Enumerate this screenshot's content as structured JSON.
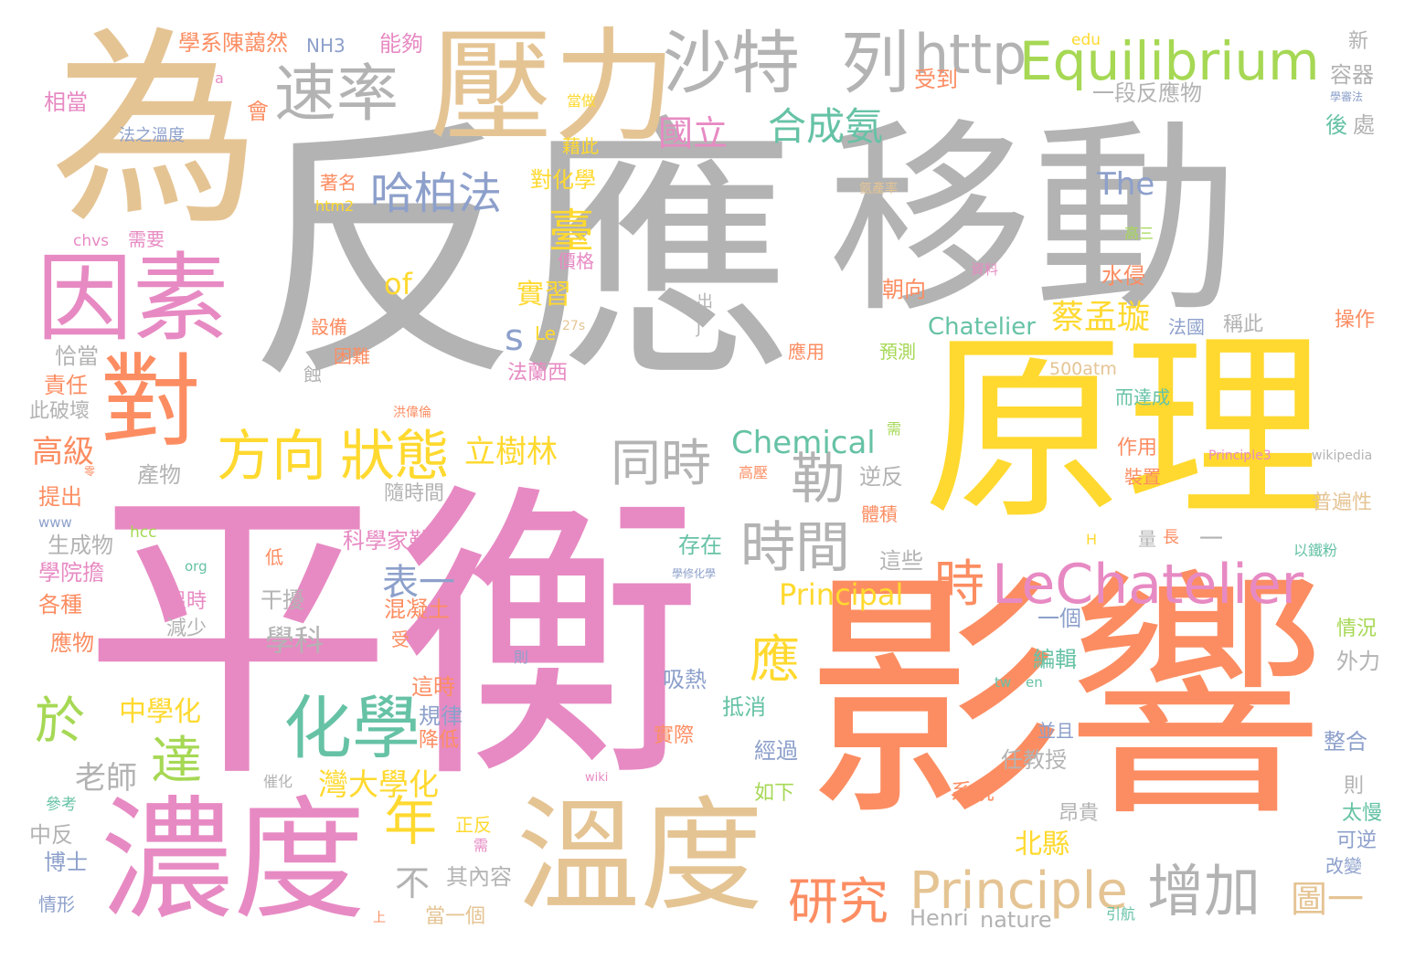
{
  "palette": {
    "gray": "#b3b3b3",
    "pink": "#e78ac3",
    "orange": "#fc8d62",
    "yellow": "#ffd92f",
    "tan": "#e5c494",
    "green": "#a6d854",
    "blue": "#8da0cb",
    "teal": "#66c2a5"
  },
  "words": [
    {
      "text": "反應",
      "color": "gray"
    },
    {
      "text": "平衡",
      "color": "pink"
    },
    {
      "text": "移動",
      "color": "gray"
    },
    {
      "text": "原理",
      "color": "yellow"
    },
    {
      "text": "影響",
      "color": "orange"
    },
    {
      "text": "為",
      "color": "tan"
    },
    {
      "text": "壓力",
      "color": "tan"
    },
    {
      "text": "濃度",
      "color": "pink"
    },
    {
      "text": "溫度",
      "color": "tan"
    },
    {
      "text": "因素",
      "color": "pink"
    },
    {
      "text": "對",
      "color": "orange"
    },
    {
      "text": "沙特",
      "color": "gray"
    },
    {
      "text": "列",
      "color": "gray"
    },
    {
      "text": "速率",
      "color": "gray"
    },
    {
      "text": "http",
      "color": "gray"
    },
    {
      "text": "Equilibrium",
      "color": "green"
    },
    {
      "text": "LeChatelier",
      "color": "pink"
    },
    {
      "text": "Principle",
      "color": "tan"
    },
    {
      "text": "方向",
      "color": "yellow"
    },
    {
      "text": "狀態",
      "color": "yellow"
    },
    {
      "text": "化學",
      "color": "teal"
    },
    {
      "text": "時間",
      "color": "gray"
    },
    {
      "text": "增加",
      "color": "gray"
    },
    {
      "text": "哈柏法",
      "color": "blue"
    },
    {
      "text": "合成氨",
      "color": "teal"
    },
    {
      "text": "同時",
      "color": "gray"
    },
    {
      "text": "勒",
      "color": "gray"
    },
    {
      "text": "研究",
      "color": "orange"
    },
    {
      "text": "時",
      "color": "orange"
    },
    {
      "text": "臺",
      "color": "yellow"
    },
    {
      "text": "應",
      "color": "yellow"
    },
    {
      "text": "於",
      "color": "green"
    },
    {
      "text": "年",
      "color": "yellow"
    },
    {
      "text": "達",
      "color": "green"
    },
    {
      "text": "The",
      "color": "blue"
    },
    {
      "text": "Chemical",
      "color": "teal"
    },
    {
      "text": "Chatelier",
      "color": "teal"
    },
    {
      "text": "Principal",
      "color": "yellow"
    },
    {
      "text": "蔡孟璇",
      "color": "yellow"
    },
    {
      "text": "立樹林",
      "color": "yellow"
    },
    {
      "text": "表一",
      "color": "blue"
    },
    {
      "text": "國立",
      "color": "pink"
    },
    {
      "text": "實習",
      "color": "yellow"
    },
    {
      "text": "高級",
      "color": "orange"
    },
    {
      "text": "灣大學化",
      "color": "yellow"
    },
    {
      "text": "中學化",
      "color": "yellow"
    },
    {
      "text": "老師",
      "color": "gray"
    },
    {
      "text": "不",
      "color": "gray"
    },
    {
      "text": "圖一",
      "color": "tan"
    },
    {
      "text": "北縣",
      "color": "yellow"
    },
    {
      "text": "s",
      "color": "blue"
    },
    {
      "text": "of",
      "color": "yellow"
    },
    {
      "text": "學科",
      "color": "gray"
    },
    {
      "text": "500atm",
      "color": "tan"
    },
    {
      "text": "Henri",
      "color": "gray"
    },
    {
      "text": "nature",
      "color": "gray"
    },
    {
      "text": "一段反應物",
      "color": "gray"
    },
    {
      "text": "edu",
      "color": "yellow"
    },
    {
      "text": "新",
      "color": "gray"
    },
    {
      "text": "容器",
      "color": "gray"
    },
    {
      "text": "後",
      "color": "teal"
    },
    {
      "text": "處",
      "color": "gray"
    },
    {
      "text": "學系陳藹然",
      "color": "orange"
    },
    {
      "text": "NH3",
      "color": "blue"
    },
    {
      "text": "能夠",
      "color": "pink"
    },
    {
      "text": "受到",
      "color": "orange"
    },
    {
      "text": "相當",
      "color": "pink"
    },
    {
      "text": "會",
      "color": "orange"
    },
    {
      "text": "法之溫度",
      "color": "blue"
    },
    {
      "text": "藉此",
      "color": "yellow"
    },
    {
      "text": "對化學",
      "color": "yellow"
    },
    {
      "text": "著名",
      "color": "orange"
    },
    {
      "text": "htm2",
      "color": "yellow"
    },
    {
      "text": "chvs",
      "color": "pink"
    },
    {
      "text": "需要",
      "color": "pink"
    },
    {
      "text": "價格",
      "color": "pink"
    },
    {
      "text": "氨產率",
      "color": "tan"
    },
    {
      "text": "高三",
      "color": "green"
    },
    {
      "text": "資料",
      "color": "pink"
    },
    {
      "text": "水侵",
      "color": "orange"
    },
    {
      "text": "朝向",
      "color": "orange"
    },
    {
      "text": "設備",
      "color": "orange"
    },
    {
      "text": "困難",
      "color": "orange"
    },
    {
      "text": "法國",
      "color": "blue"
    },
    {
      "text": "稱此",
      "color": "gray"
    },
    {
      "text": "操作",
      "color": "orange"
    },
    {
      "text": "恰當",
      "color": "gray"
    },
    {
      "text": "責任",
      "color": "orange"
    },
    {
      "text": "此破壞",
      "color": "gray"
    },
    {
      "text": "法蘭西",
      "color": "pink"
    },
    {
      "text": "預測",
      "color": "green"
    },
    {
      "text": "應用",
      "color": "orange"
    },
    {
      "text": "而達成",
      "color": "teal"
    },
    {
      "text": "作用",
      "color": "orange"
    },
    {
      "text": "裝置",
      "color": "orange"
    },
    {
      "text": "普遍性",
      "color": "tan"
    },
    {
      "text": "產物",
      "color": "gray"
    },
    {
      "text": "逆反",
      "color": "gray"
    },
    {
      "text": "提出",
      "color": "orange"
    },
    {
      "text": "隨時間",
      "color": "gray"
    },
    {
      "text": "生成物",
      "color": "gray"
    },
    {
      "text": "學院擔",
      "color": "pink"
    },
    {
      "text": "科學家勒",
      "color": "pink"
    },
    {
      "text": "存在",
      "color": "teal"
    },
    {
      "text": "這些",
      "color": "gray"
    },
    {
      "text": "各種",
      "color": "orange"
    },
    {
      "text": "溫時",
      "color": "pink"
    },
    {
      "text": "減少",
      "color": "gray"
    },
    {
      "text": "干擾",
      "color": "gray"
    },
    {
      "text": "混凝土",
      "color": "orange"
    },
    {
      "text": "應物",
      "color": "orange"
    },
    {
      "text": "一個",
      "color": "blue"
    },
    {
      "text": "情況",
      "color": "green"
    },
    {
      "text": "外力",
      "color": "gray"
    },
    {
      "text": "編輯",
      "color": "teal"
    },
    {
      "text": "吸熱",
      "color": "blue"
    },
    {
      "text": "這時",
      "color": "orange"
    },
    {
      "text": "規律",
      "color": "blue"
    },
    {
      "text": "降低",
      "color": "orange"
    },
    {
      "text": "抵消",
      "color": "teal"
    },
    {
      "text": "實際",
      "color": "orange"
    },
    {
      "text": "經過",
      "color": "blue"
    },
    {
      "text": "任教授",
      "color": "gray"
    },
    {
      "text": "並且",
      "color": "blue"
    },
    {
      "text": "整合",
      "color": "blue"
    },
    {
      "text": "系統",
      "color": "orange"
    },
    {
      "text": "如下",
      "color": "green"
    },
    {
      "text": "昂貴",
      "color": "gray"
    },
    {
      "text": "則",
      "color": "gray"
    },
    {
      "text": "太慢",
      "color": "teal"
    },
    {
      "text": "可逆",
      "color": "blue"
    },
    {
      "text": "改變",
      "color": "blue"
    },
    {
      "text": "中反",
      "color": "gray"
    },
    {
      "text": "博士",
      "color": "blue"
    },
    {
      "text": "其內容",
      "color": "gray"
    },
    {
      "text": "當一個",
      "color": "tan"
    },
    {
      "text": "參考",
      "color": "teal"
    },
    {
      "text": "情形",
      "color": "blue"
    },
    {
      "text": "正反",
      "color": "yellow"
    },
    {
      "text": "需",
      "color": "pink"
    },
    {
      "text": "引航",
      "color": "teal"
    },
    {
      "text": "催化",
      "color": "gray"
    },
    {
      "text": "洪偉倫",
      "color": "orange"
    },
    {
      "text": "wikipedia",
      "color": "gray"
    },
    {
      "text": "Principle3",
      "color": "pink"
    },
    {
      "text": "27s",
      "color": "tan"
    },
    {
      "text": "Le",
      "color": "yellow"
    },
    {
      "text": "www",
      "color": "blue"
    },
    {
      "text": "hcc",
      "color": "green"
    },
    {
      "text": "org",
      "color": "teal"
    },
    {
      "text": "低",
      "color": "orange"
    },
    {
      "text": "受",
      "color": "orange"
    },
    {
      "text": "量",
      "color": "gray"
    },
    {
      "text": "長",
      "color": "orange"
    },
    {
      "text": "H",
      "color": "yellow"
    },
    {
      "text": "以鐵粉",
      "color": "teal"
    },
    {
      "text": "tw",
      "color": "teal"
    },
    {
      "text": "en",
      "color": "teal"
    },
    {
      "text": "wiki",
      "color": "pink"
    },
    {
      "text": "出",
      "color": "gray"
    },
    {
      "text": "J",
      "color": "gray"
    },
    {
      "text": "蝕",
      "color": "gray"
    },
    {
      "text": "需",
      "color": "green"
    },
    {
      "text": "高壓",
      "color": "orange"
    },
    {
      "text": "體積",
      "color": "orange"
    },
    {
      "text": "當做",
      "color": "yellow"
    },
    {
      "text": "a",
      "color": "pink"
    },
    {
      "text": "學審法",
      "color": "blue"
    },
    {
      "text": "學修化學",
      "color": "blue"
    },
    {
      "text": "則",
      "color": "blue"
    },
    {
      "text": "上",
      "color": "orange"
    },
    {
      "text": "一",
      "color": "gray"
    },
    {
      "text": "零",
      "color": "orange"
    }
  ]
}
